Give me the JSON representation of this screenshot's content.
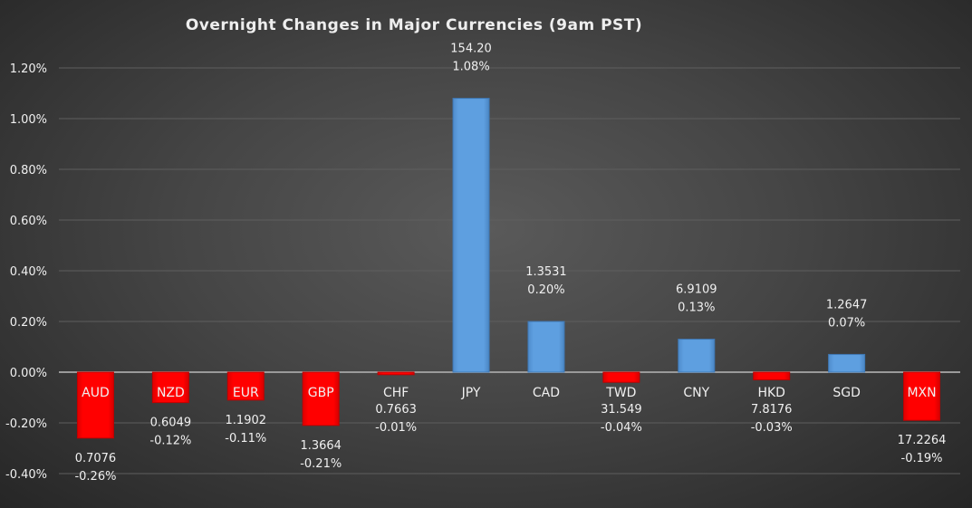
{
  "chart_data": {
    "type": "bar",
    "title": "Overnight Changes in Major Currencies (9am PST)",
    "categories": [
      "AUD",
      "NZD",
      "EUR",
      "GBP",
      "CHF",
      "JPY",
      "CAD",
      "TWD",
      "CNY",
      "HKD",
      "SGD",
      "MXN"
    ],
    "values": [
      -0.26,
      -0.12,
      -0.11,
      -0.21,
      -0.01,
      1.08,
      0.2,
      -0.04,
      0.13,
      -0.03,
      0.07,
      -0.19
    ],
    "value_labels": [
      "-0.26%",
      "-0.12%",
      "-0.11%",
      "-0.21%",
      "-0.01%",
      "1.08%",
      "0.20%",
      "-0.04%",
      "0.13%",
      "-0.03%",
      "0.07%",
      "-0.19%"
    ],
    "rates": [
      "0.7076",
      "0.6049",
      "1.1902",
      "1.3664",
      "0.7663",
      "154.20",
      "1.3531",
      "31.549",
      "6.9109",
      "7.8176",
      "1.2647",
      "17.2264"
    ],
    "ylim": [
      -0.4,
      1.2
    ],
    "yticks": [
      -0.4,
      -0.2,
      0.0,
      0.2,
      0.4,
      0.6,
      0.8,
      1.0,
      1.2
    ],
    "ytick_labels": [
      "-0.40%",
      "-0.20%",
      "0.00%",
      "0.20%",
      "0.40%",
      "0.60%",
      "0.80%",
      "1.00%",
      "1.20%"
    ],
    "grid": true,
    "colors": {
      "positive": "#5b9bd5",
      "negative": "#ff0000",
      "background": "#454545"
    }
  }
}
